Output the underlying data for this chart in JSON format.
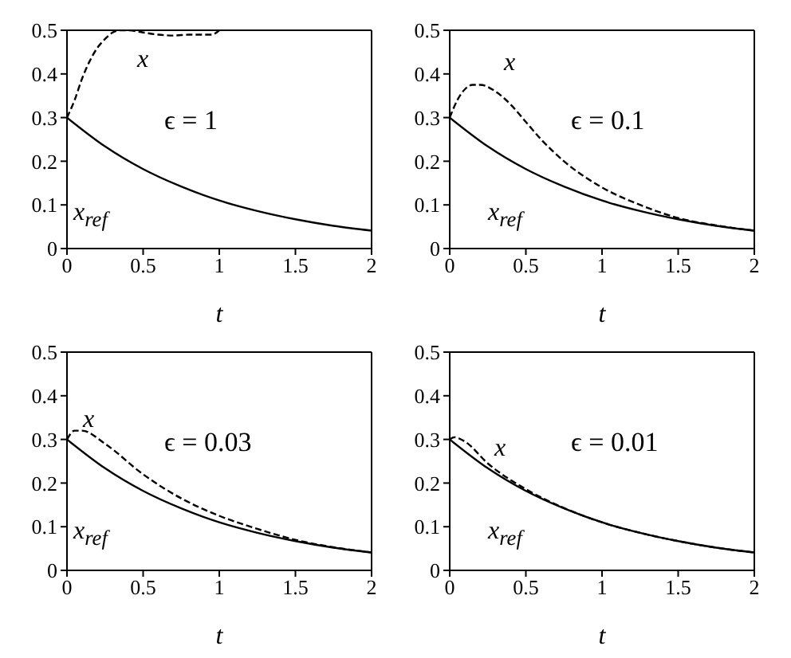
{
  "chart_data": [
    {
      "type": "line",
      "xlabel": "t",
      "xlim": [
        0,
        2
      ],
      "ylim": [
        0,
        0.5
      ],
      "xticks": [
        0,
        0.5,
        1,
        1.5,
        2
      ],
      "yticks": [
        0,
        0.1,
        0.2,
        0.3,
        0.4,
        0.5
      ],
      "grid": false,
      "legend": false,
      "marker": "none",
      "annotations": [
        "ϵ = 1"
      ],
      "series": [
        {
          "name": "x",
          "color": "#000000",
          "line_style": "dashed",
          "x": [
            0,
            0.05,
            0.1,
            0.15,
            0.2,
            0.25,
            0.3,
            0.35,
            0.4,
            0.5,
            0.6,
            0.7,
            0.8,
            0.9,
            0.95,
            1
          ],
          "values": [
            0.3,
            0.34,
            0.39,
            0.43,
            0.46,
            0.48,
            0.495,
            0.5,
            0.5,
            0.495,
            0.49,
            0.488,
            0.49,
            0.49,
            0.49,
            0.5
          ]
        },
        {
          "name": "x$_{ref}$",
          "color": "#000000",
          "line_style": "solid",
          "x": [
            0,
            0.25,
            0.5,
            0.75,
            1,
            1.25,
            1.5,
            1.75,
            2
          ],
          "values": [
            0.3,
            0.234,
            0.182,
            0.142,
            0.11,
            0.086,
            0.067,
            0.052,
            0.041
          ]
        }
      ]
    },
    {
      "type": "line",
      "xlabel": "t",
      "xlim": [
        0,
        2
      ],
      "ylim": [
        0,
        0.5
      ],
      "xticks": [
        0,
        0.5,
        1,
        1.5,
        2
      ],
      "yticks": [
        0,
        0.1,
        0.2,
        0.3,
        0.4,
        0.5
      ],
      "grid": false,
      "legend": false,
      "marker": "none",
      "annotations": [
        "ϵ = 0.1"
      ],
      "series": [
        {
          "name": "x",
          "color": "#000000",
          "line_style": "dashed",
          "x": [
            0,
            0.05,
            0.1,
            0.15,
            0.2,
            0.3,
            0.4,
            0.5,
            0.6,
            0.75,
            1,
            1.25,
            1.5,
            1.75,
            2
          ],
          "values": [
            0.3,
            0.34,
            0.365,
            0.375,
            0.375,
            0.36,
            0.33,
            0.29,
            0.25,
            0.2,
            0.14,
            0.1,
            0.07,
            0.053,
            0.041
          ]
        },
        {
          "name": "x$_{ref}$",
          "color": "#000000",
          "line_style": "solid",
          "x": [
            0,
            0.25,
            0.5,
            0.75,
            1,
            1.25,
            1.5,
            1.75,
            2
          ],
          "values": [
            0.3,
            0.234,
            0.182,
            0.142,
            0.11,
            0.086,
            0.067,
            0.052,
            0.041
          ]
        }
      ]
    },
    {
      "type": "line",
      "xlabel": "t",
      "xlim": [
        0,
        2
      ],
      "ylim": [
        0,
        0.5
      ],
      "xticks": [
        0,
        0.5,
        1,
        1.5,
        2
      ],
      "yticks": [
        0,
        0.1,
        0.2,
        0.3,
        0.4,
        0.5
      ],
      "grid": false,
      "legend": false,
      "marker": "none",
      "annotations": [
        "ϵ = 0.03"
      ],
      "series": [
        {
          "name": "x",
          "color": "#000000",
          "line_style": "dashed",
          "x": [
            0,
            0.05,
            0.1,
            0.25,
            0.5,
            0.75,
            1,
            1.25,
            1.5,
            1.75,
            2
          ],
          "values": [
            0.3,
            0.32,
            0.32,
            0.29,
            0.22,
            0.165,
            0.125,
            0.095,
            0.07,
            0.053,
            0.041
          ]
        },
        {
          "name": "x$_{ref}$",
          "color": "#000000",
          "line_style": "solid",
          "x": [
            0,
            0.25,
            0.5,
            0.75,
            1,
            1.25,
            1.5,
            1.75,
            2
          ],
          "values": [
            0.3,
            0.234,
            0.182,
            0.142,
            0.11,
            0.086,
            0.067,
            0.052,
            0.041
          ]
        }
      ]
    },
    {
      "type": "line",
      "xlabel": "t",
      "xlim": [
        0,
        2
      ],
      "ylim": [
        0,
        0.5
      ],
      "xticks": [
        0,
        0.5,
        1,
        1.5,
        2
      ],
      "yticks": [
        0,
        0.1,
        0.2,
        0.3,
        0.4,
        0.5
      ],
      "grid": false,
      "legend": false,
      "marker": "none",
      "annotations": [
        "ϵ = 0.01"
      ],
      "series": [
        {
          "name": "x",
          "color": "#000000",
          "line_style": "dashed",
          "x": [
            0,
            0.03,
            0.1,
            0.25,
            0.5,
            0.75,
            1,
            1.25,
            1.5,
            1.75,
            2
          ],
          "values": [
            0.3,
            0.305,
            0.295,
            0.245,
            0.186,
            0.143,
            0.11,
            0.086,
            0.067,
            0.052,
            0.041
          ]
        },
        {
          "name": "x$_{ref}$",
          "color": "#000000",
          "line_style": "solid",
          "x": [
            0,
            0.25,
            0.5,
            0.75,
            1,
            1.25,
            1.5,
            1.75,
            2
          ],
          "values": [
            0.3,
            0.234,
            0.182,
            0.142,
            0.11,
            0.086,
            0.067,
            0.052,
            0.041
          ]
        }
      ]
    }
  ]
}
